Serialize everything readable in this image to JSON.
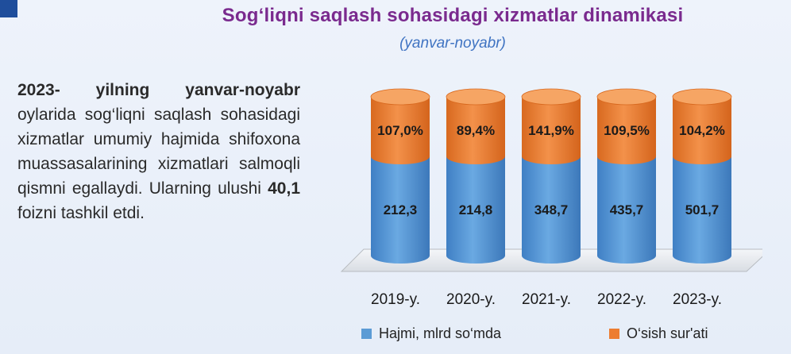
{
  "title": "Sog‘liqni saqlash sohasidagi xizmatlar dinamikasi",
  "subtitle": "(yanvar-noyabr)",
  "text": {
    "lead_bold": "2023- yilning yanvar-noyabr",
    "part1": " oylarida sog‘liqni saqlash sohasidagi xizmatlar umumiy hajmida shifoxona muassasalarining xizmatlari salmoqli qismni egallaydi. Ularning ulushi ",
    "value_bold": "40,1",
    "part2": " foizni tashkil etdi."
  },
  "colors": {
    "volume": "#5b9bd5",
    "growth": "#ed7d31",
    "title": "#7a2a8e",
    "subtitle": "#3f73c2"
  },
  "chart_data": {
    "type": "bar",
    "stacked": true,
    "categories": [
      "2019-y.",
      "2020-y.",
      "2021-y.",
      "2022-y.",
      "2023-y."
    ],
    "series": [
      {
        "name": "Hajmi, mlrd so‘mda",
        "values": [
          212.3,
          214.8,
          348.7,
          435.7,
          501.7
        ],
        "labels": [
          "212,3",
          "214,8",
          "348,7",
          "435,7",
          "501,7"
        ]
      },
      {
        "name": "O‘sish sur'ati",
        "values": [
          107.0,
          89.4,
          141.9,
          109.5,
          104.2
        ],
        "labels": [
          "107,0%",
          "89,4%",
          "141,9%",
          "109,5%",
          "104,2%"
        ]
      }
    ],
    "legend_position": "bottom",
    "grid": false
  }
}
